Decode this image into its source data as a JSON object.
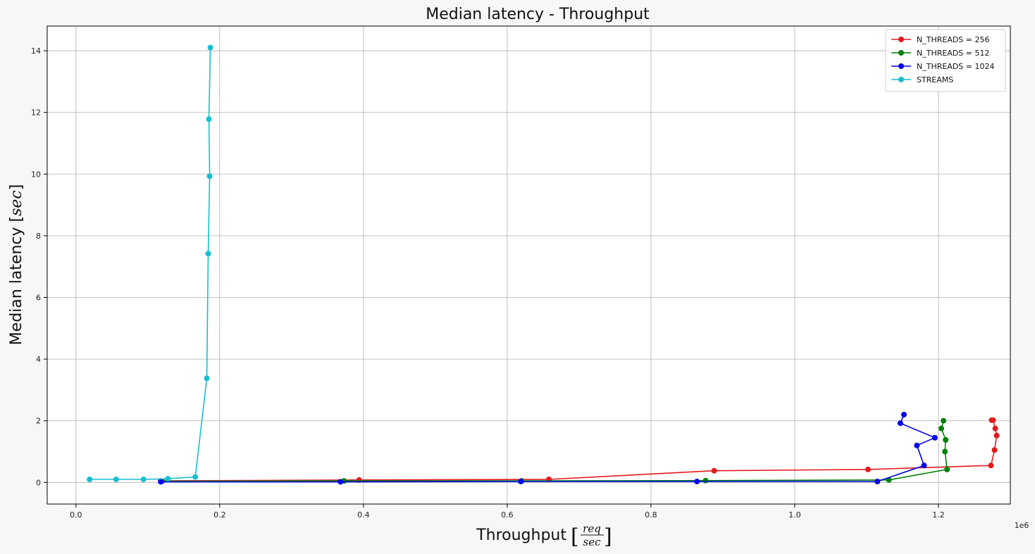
{
  "chart_data": {
    "type": "line",
    "title": "Median latency  - Throughput",
    "xlabel": "Throughput",
    "xlabel_fraction": {
      "numerator": "req",
      "denominator": "sec"
    },
    "ylabel": "Median latency",
    "ylabel_unit": "sec",
    "x_offset_label": "1e6",
    "xlim": [
      -0.04,
      1.3
    ],
    "ylim": [
      -0.7,
      14.8
    ],
    "xticks": [
      0.0,
      0.2,
      0.4,
      0.6,
      0.8,
      1.0,
      1.2
    ],
    "xtick_labels": [
      "0.0",
      "0.2",
      "0.4",
      "0.6",
      "0.8",
      "1.0",
      "1.2"
    ],
    "yticks": [
      0,
      2,
      4,
      6,
      8,
      10,
      12,
      14
    ],
    "ytick_labels": [
      "0",
      "2",
      "4",
      "6",
      "8",
      "10",
      "12",
      "14"
    ],
    "grid": true,
    "legend_position": "top-right",
    "series": [
      {
        "name": "N_THREADS = 256",
        "color": "#e41a1c",
        "x": [
          0.118,
          0.394,
          0.658,
          0.888,
          1.102,
          1.273,
          1.278,
          1.281,
          1.279,
          1.276,
          1.274
        ],
        "y": [
          0.05,
          0.08,
          0.1,
          0.38,
          0.42,
          0.55,
          1.05,
          1.52,
          1.75,
          2.02,
          2.02
        ]
      },
      {
        "name": "N_THREADS = 512",
        "color": "#008000",
        "x": [
          0.12,
          0.373,
          0.62,
          0.876,
          1.131,
          1.212,
          1.209,
          1.21,
          1.204,
          1.207
        ],
        "y": [
          0.04,
          0.05,
          0.05,
          0.06,
          0.08,
          0.42,
          1.0,
          1.38,
          1.75,
          2.0
        ]
      },
      {
        "name": "N_THREADS = 1024",
        "color": "#0000ee",
        "x": [
          0.118,
          0.368,
          0.619,
          0.864,
          1.115,
          1.18,
          1.17,
          1.195,
          1.147,
          1.152
        ],
        "y": [
          0.02,
          0.02,
          0.03,
          0.03,
          0.03,
          0.55,
          1.2,
          1.45,
          1.92,
          2.2
        ]
      },
      {
        "name": "STREAMS",
        "color": "#17becf",
        "x": [
          0.019,
          0.056,
          0.094,
          0.128,
          0.166,
          0.182,
          0.184,
          0.186,
          0.185,
          0.187
        ],
        "y": [
          0.1,
          0.1,
          0.1,
          0.12,
          0.18,
          3.38,
          7.42,
          9.93,
          11.78,
          14.1
        ]
      }
    ]
  }
}
